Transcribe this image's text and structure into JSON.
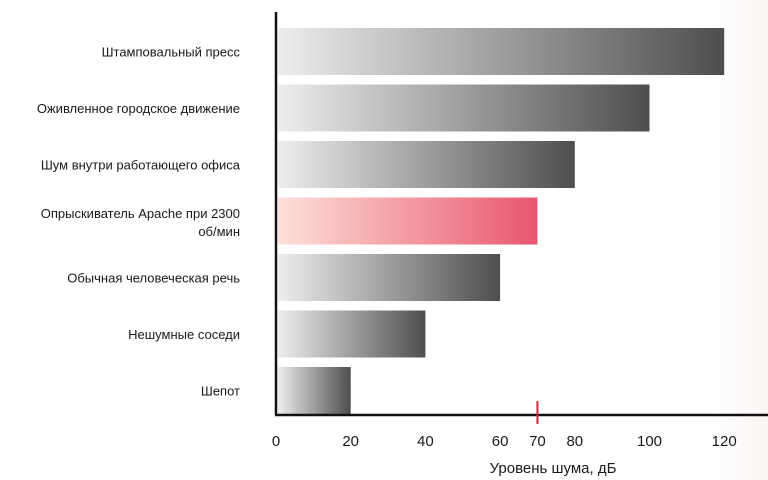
{
  "chart_data": {
    "type": "bar",
    "orientation": "horizontal",
    "categories": [
      "Штамповальный пресс",
      "Оживленное городское движение",
      "Шум внутри работающего офиса",
      "Опрыскиватель Apache при 2300 об/мин",
      "Обычная человеческая речь",
      "Нешумные соседи",
      "Шепот"
    ],
    "values": [
      120,
      100,
      80,
      70,
      60,
      40,
      20
    ],
    "highlight_index": 3,
    "xlim": [
      0,
      130
    ],
    "xticks": [
      0,
      20,
      40,
      60,
      70,
      80,
      100,
      120
    ],
    "highlight_tick": 70,
    "xlabel": "Уровень шума, дБ",
    "ylabel": "",
    "title": "",
    "grid": false,
    "colors": {
      "bar_start": "#ededed",
      "bar_end": "#4e4e4e",
      "highlight_start": "#fde0d9",
      "highlight_end": "#e8566e",
      "highlight_tick": "#d5233f",
      "axis": "#111111",
      "text": "#1a1a1a"
    }
  }
}
